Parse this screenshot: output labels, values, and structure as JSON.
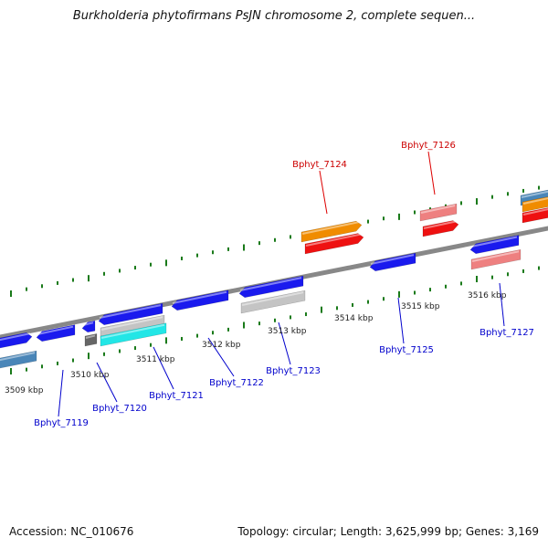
{
  "title": "Burkholderia phytofirmans PsJN chromosome 2, complete sequen...",
  "footer": {
    "accession": "Accession: NC_010676",
    "stats": "Topology: circular; Length: 3,625,999 bp; Genes: 3,169"
  },
  "colors": {
    "backbone": "#888888",
    "tick": "#1a7a1a",
    "label_forward": "#cc0000",
    "label_reverse": "#0000cc",
    "leader_forward": "#dd0000",
    "leader_reverse": "#0000cc"
  },
  "scale": {
    "unit": "kbp",
    "tick_labels": [
      "3509 kbp",
      "3510 kbp",
      "3511 kbp",
      "3512 kbp",
      "3513 kbp",
      "3514 kbp",
      "3515 kbp",
      "3516 kbp"
    ]
  },
  "gene_labels": {
    "forward": [
      "Bphyt_7124",
      "Bphyt_7126"
    ],
    "reverse": [
      "Bphyt_7119",
      "Bphyt_7120",
      "Bphyt_7121",
      "Bphyt_7122",
      "Bphyt_7123",
      "Bphyt_7125",
      "Bphyt_7127"
    ]
  },
  "feature_colors": {
    "cds": "#1a1aee",
    "cds_alt": "#4a86b8",
    "orange": "#f08c00",
    "red": "#ee1111",
    "pink": "#ee8080",
    "gray": "#c4c4c4",
    "dark_gray": "#666666",
    "cyan": "#22e6e6"
  }
}
